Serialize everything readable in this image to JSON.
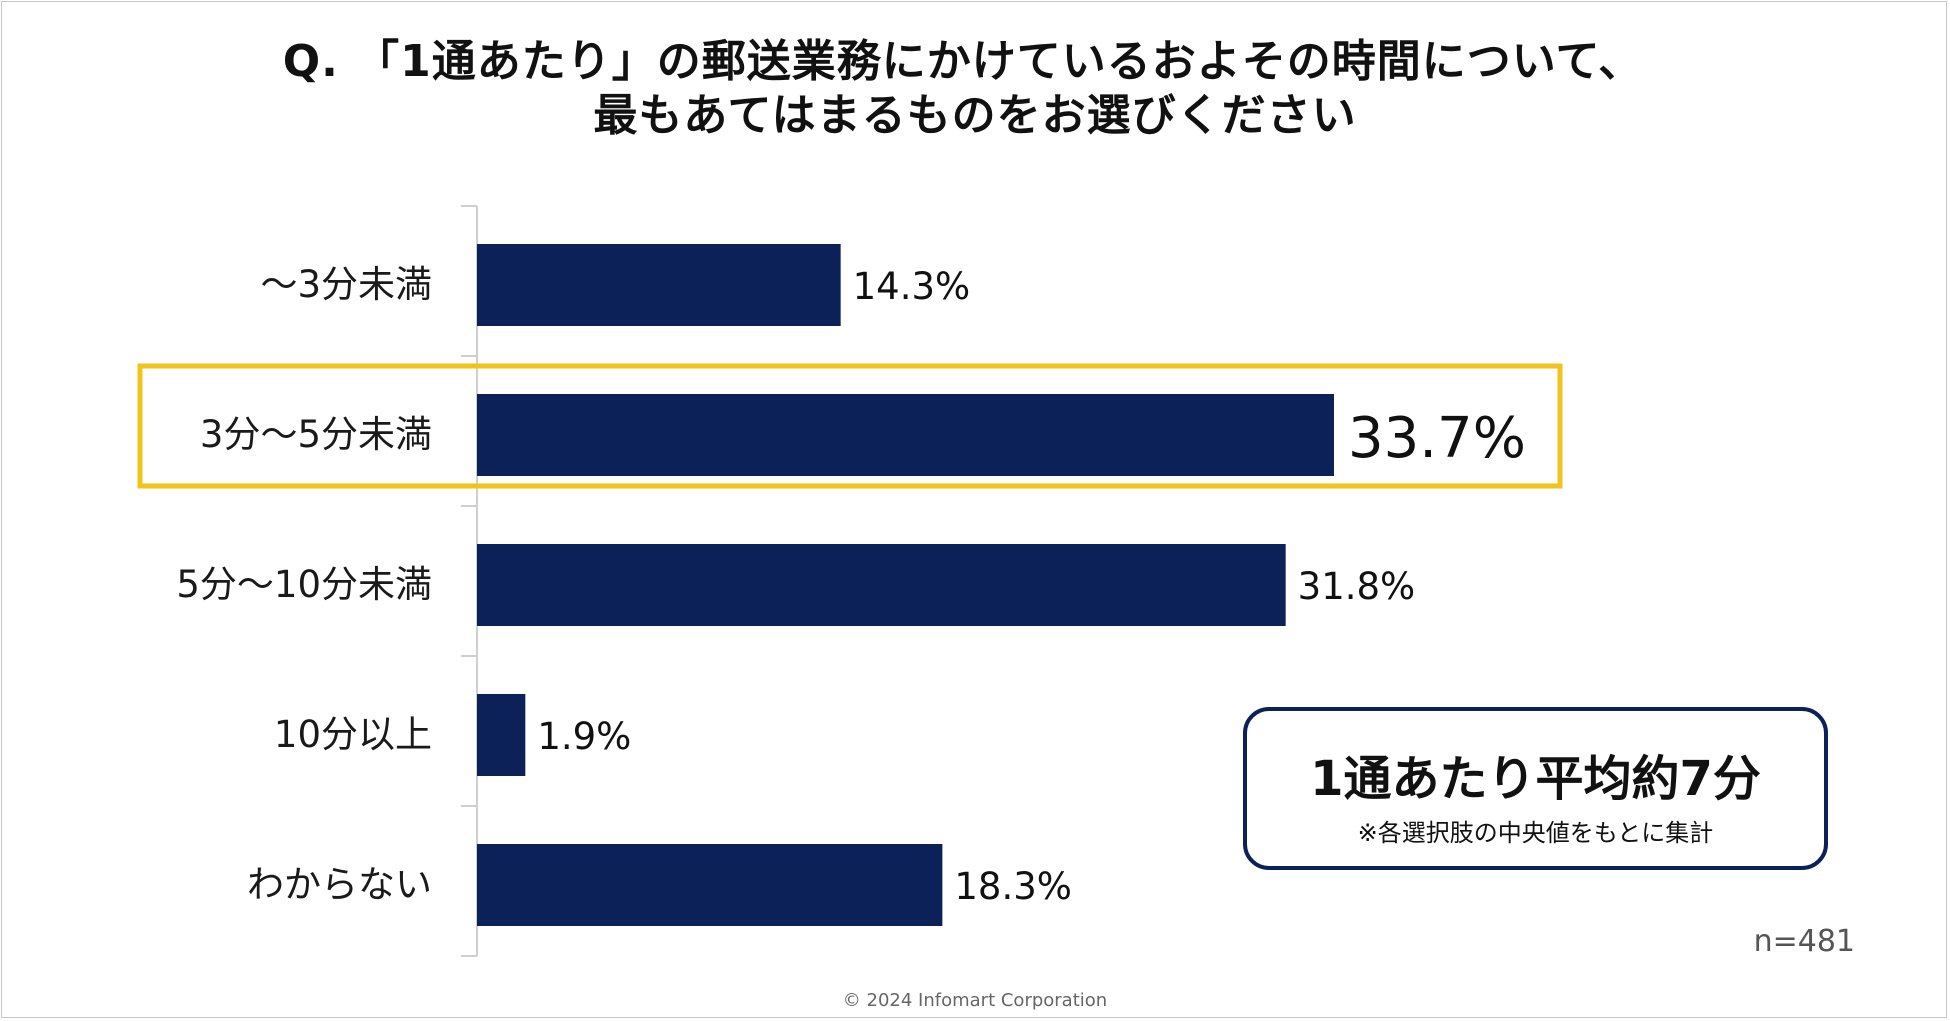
{
  "title": {
    "line1": "Q. 「1通あたり」の郵送業務にかけているおよその時間について、",
    "line2": "最もあてはまるものをお選びください"
  },
  "chart_data": {
    "type": "bar",
    "orientation": "horizontal",
    "title": "Q. 「1通あたり」の郵送業務にかけているおよその時間について、最もあてはまるものをお選びください",
    "categories": [
      "～3分未満",
      "3分～5分未満",
      "5分～10分未満",
      "10分以上",
      "わからない"
    ],
    "values": [
      14.3,
      33.7,
      31.8,
      1.9,
      18.3
    ],
    "value_labels": [
      "14.3%",
      "33.7%",
      "31.8%",
      "1.9%",
      "18.3%"
    ],
    "unit": "%",
    "xlim": [
      0,
      35
    ],
    "highlight_index": 1,
    "bar_color": "#0c2157",
    "highlight_color": "#f2c31b",
    "grid": false,
    "legend": false
  },
  "summary": {
    "main": "1通あたり平均約7分",
    "note": "※各選択肢の中央値をもとに集計"
  },
  "sample_size": "n=481",
  "copyright": "© 2024 Infomart Corporation"
}
